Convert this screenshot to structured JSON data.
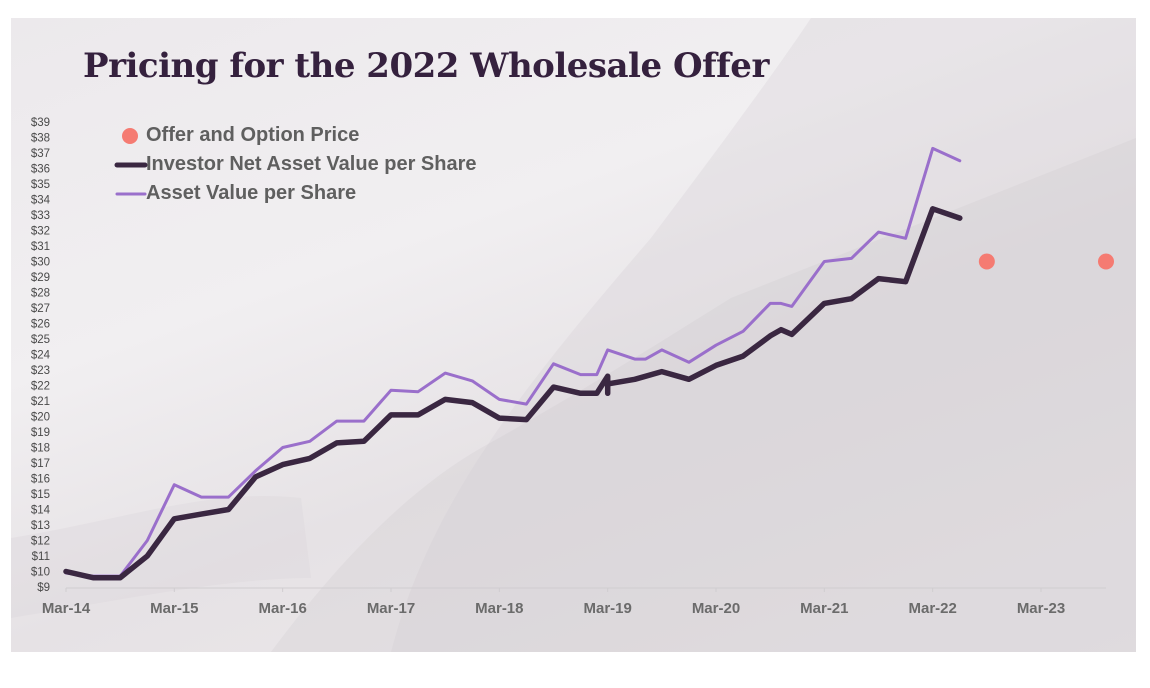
{
  "title": "Pricing for the 2022 Wholesale Offer",
  "chart_data": {
    "type": "line",
    "title": "Pricing for the 2022 Wholesale Offer",
    "xlabel": "",
    "ylabel": "",
    "x_ticks": [
      "Mar-14",
      "Mar-15",
      "Mar-16",
      "Mar-17",
      "Mar-18",
      "Mar-19",
      "Mar-20",
      "Mar-21",
      "Mar-22",
      "Mar-23"
    ],
    "y_ticks": [
      "$9",
      "$10",
      "$11",
      "$12",
      "$13",
      "$14",
      "$15",
      "$16",
      "$17",
      "$18",
      "$19",
      "$20",
      "$21",
      "$22",
      "$23",
      "$24",
      "$25",
      "$26",
      "$27",
      "$28",
      "$29",
      "$30",
      "$31",
      "$32",
      "$33",
      "$34",
      "$35",
      "$36",
      "$37",
      "$38",
      "$39"
    ],
    "ylim": [
      9,
      39
    ],
    "x_unit": "years since Mar-14",
    "xlim": [
      0,
      9.6
    ],
    "grid": false,
    "legend_position": "top-left",
    "colors": {
      "offer": "#f57b72",
      "investor_nav": "#3a2741",
      "asset_value": "#9a6fcb"
    },
    "series": [
      {
        "name": "Offer and Option Price",
        "kind": "scatter",
        "x": [
          8.5,
          9.6
        ],
        "y": [
          30,
          30
        ]
      },
      {
        "name": "Investor Net Asset Value per Share",
        "kind": "line",
        "x": [
          0,
          0.25,
          0.5,
          0.75,
          1.0,
          1.25,
          1.5,
          1.75,
          2.0,
          2.25,
          2.5,
          2.75,
          3.0,
          3.25,
          3.5,
          3.75,
          4.0,
          4.25,
          4.5,
          4.75,
          4.9,
          5.0,
          5.0,
          5.0,
          5.25,
          5.5,
          5.75,
          6.0,
          6.25,
          6.5,
          6.6,
          6.7,
          7.0,
          7.25,
          7.5,
          7.75,
          8.0,
          8.25
        ],
        "y": [
          10.0,
          9.6,
          9.6,
          11.0,
          13.4,
          13.7,
          14.0,
          16.1,
          16.9,
          17.3,
          18.3,
          18.4,
          20.1,
          20.1,
          21.1,
          20.9,
          19.9,
          19.8,
          21.9,
          21.5,
          21.5,
          22.6,
          21.5,
          22.1,
          22.4,
          22.9,
          22.4,
          23.3,
          23.9,
          25.2,
          25.6,
          25.3,
          27.3,
          27.6,
          28.9,
          28.7,
          33.4,
          32.8
        ]
      },
      {
        "name": "Asset Value per Share",
        "kind": "line",
        "x": [
          0,
          0.25,
          0.5,
          0.75,
          1.0,
          1.25,
          1.5,
          1.75,
          2.0,
          2.25,
          2.5,
          2.75,
          3.0,
          3.25,
          3.5,
          3.75,
          4.0,
          4.25,
          4.5,
          4.75,
          4.9,
          5.0,
          5.25,
          5.35,
          5.5,
          5.75,
          6.0,
          6.25,
          6.5,
          6.6,
          6.7,
          7.0,
          7.25,
          7.5,
          7.75,
          8.0,
          8.25
        ],
        "y": [
          9.9,
          9.7,
          9.7,
          12.0,
          15.6,
          14.8,
          14.8,
          16.5,
          18.0,
          18.4,
          19.7,
          19.7,
          21.7,
          21.6,
          22.8,
          22.3,
          21.1,
          20.8,
          23.4,
          22.7,
          22.7,
          24.3,
          23.7,
          23.7,
          24.3,
          23.5,
          24.6,
          25.5,
          27.3,
          27.3,
          27.1,
          30.0,
          30.2,
          31.9,
          31.5,
          37.3,
          36.5
        ]
      }
    ]
  },
  "legend": [
    {
      "label": "Offer and Option Price"
    },
    {
      "label": "Investor Net Asset Value per Share"
    },
    {
      "label": "Asset Value per Share"
    }
  ]
}
